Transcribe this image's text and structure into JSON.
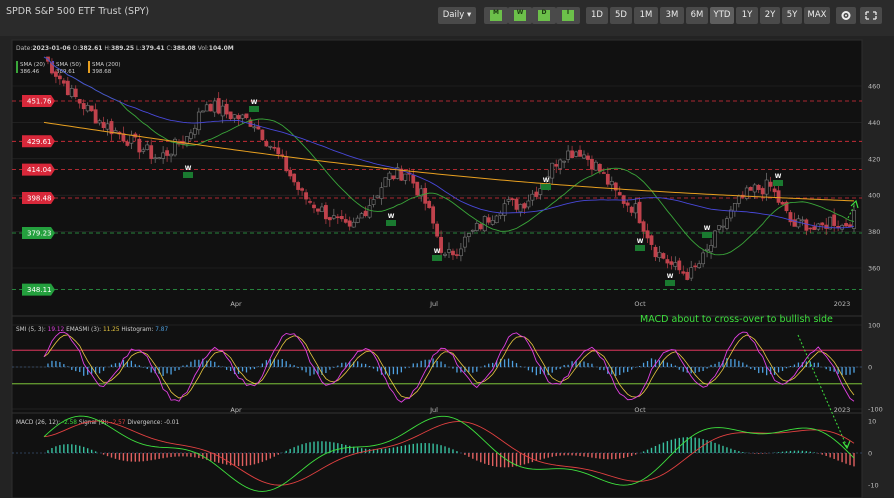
{
  "window": {
    "title": "SPDR S&P 500 ETF Trust (SPY)"
  },
  "toolbar": {
    "interval": "Daily ▾",
    "tf_buttons": [
      "M",
      "W",
      "D",
      "I"
    ],
    "range_buttons": [
      "1D",
      "5D",
      "1M",
      "3M",
      "6M",
      "YTD",
      "1Y",
      "2Y",
      "5Y",
      "MAX"
    ],
    "active_range": "YTD",
    "icon_buttons": [
      "gear-icon",
      "expand-icon"
    ]
  },
  "colors": {
    "bg": "#111111",
    "up": "#7a7a7a",
    "down": "#c0424c",
    "sma20": "#3aa63a",
    "sma50": "#4848d8",
    "sma200": "#e8a020",
    "resistance": "#e0303c",
    "support": "#2ea84a",
    "annotation": "#3ee03e"
  },
  "price_panel": {
    "info": {
      "date_label": "Date:",
      "date": "2023-01-06",
      "open_label": "O:",
      "open": "382.61",
      "high_label": "H:",
      "high": "389.25",
      "low_label": "L:",
      "low": "379.41",
      "close_label": "C:",
      "close": "388.08",
      "vol_label": "Vol:",
      "vol": "104.0M"
    },
    "sma_legend": [
      {
        "label": "SMA (20)",
        "value": "386.46",
        "color": "#3aa63a"
      },
      {
        "label": "SMA (50)",
        "value": "389.61",
        "color": "#4848d8"
      },
      {
        "label": "SMA (200)",
        "value": "398.68",
        "color": "#e8a020"
      }
    ],
    "level_tags": [
      {
        "text": "451.76",
        "kind": "resistance"
      },
      {
        "text": "429.61",
        "kind": "resistance"
      },
      {
        "text": "414.04",
        "kind": "resistance"
      },
      {
        "text": "398.48",
        "kind": "resistance"
      },
      {
        "text": "379.23",
        "kind": "support"
      },
      {
        "text": "348.11",
        "kind": "support"
      }
    ],
    "y_ticks": [
      "460",
      "440",
      "420",
      "400",
      "380",
      "360"
    ],
    "x_ticks": [
      "Apr",
      "Jul",
      "Oct",
      "2023"
    ]
  },
  "smi_panel": {
    "legend": {
      "name": "SMI (5, 3):",
      "value": "19.12",
      "ema_name": "EMASMI (3):",
      "ema_value": "11.25",
      "hist_name": "Histogram:",
      "hist_value": "7.87"
    },
    "y_ticks": [
      "100",
      "0",
      "-100"
    ],
    "x_ticks": [
      "Apr",
      "Jul",
      "Oct",
      "2023"
    ],
    "annotation": "MACD about to cross-over to bullish side"
  },
  "macd_panel": {
    "legend": {
      "name": "MACD (26, 12):",
      "value": "-2.58",
      "signal_name": "Signal (9):",
      "signal_value": "-2.57",
      "div_name": "Divergence:",
      "div_value": "-0.01"
    },
    "y_ticks": [
      "10",
      "0",
      "-10"
    ]
  },
  "chart_data": [
    {
      "type": "candlestick",
      "title": "SPDR S&P 500 ETF Trust (SPY)",
      "ylim": [
        340,
        470
      ],
      "close_approx": [
        [
          0,
          476
        ],
        [
          15,
          455
        ],
        [
          30,
          440
        ],
        [
          45,
          430
        ],
        [
          60,
          420
        ],
        [
          75,
          432
        ],
        [
          85,
          451
        ],
        [
          95,
          445
        ],
        [
          110,
          440
        ],
        [
          125,
          418
        ],
        [
          135,
          400
        ],
        [
          145,
          392
        ],
        [
          160,
          380
        ],
        [
          170,
          395
        ],
        [
          180,
          410
        ],
        [
          190,
          413
        ],
        [
          200,
          395
        ],
        [
          205,
          380
        ],
        [
          210,
          365
        ],
        [
          220,
          375
        ],
        [
          230,
          385
        ],
        [
          240,
          395
        ],
        [
          250,
          395
        ],
        [
          260,
          405
        ],
        [
          270,
          422
        ],
        [
          280,
          425
        ],
        [
          290,
          415
        ],
        [
          300,
          400
        ],
        [
          310,
          392
        ],
        [
          320,
          370
        ],
        [
          330,
          360
        ],
        [
          338,
          356
        ],
        [
          345,
          365
        ],
        [
          352,
          378
        ],
        [
          358,
          388
        ],
        [
          365,
          398
        ],
        [
          372,
          403
        ],
        [
          380,
          405
        ],
        [
          385,
          396
        ],
        [
          392,
          383
        ],
        [
          398,
          385
        ],
        [
          405,
          380
        ],
        [
          412,
          387
        ],
        [
          418,
          383
        ],
        [
          424,
          388
        ]
      ],
      "sma20": "green",
      "sma50": "blue",
      "sma200": "orange",
      "levels": [
        451.76,
        429.61,
        414.04,
        398.48,
        379.23,
        348.11
      ]
    },
    {
      "type": "line",
      "name": "SMI (5, 3)",
      "ylim": [
        -100,
        100
      ],
      "last": 19.12
    },
    {
      "type": "line",
      "name": "MACD (26, 12)",
      "ylim": [
        -12,
        12
      ],
      "last": -2.58,
      "signal_last": -2.57
    }
  ]
}
